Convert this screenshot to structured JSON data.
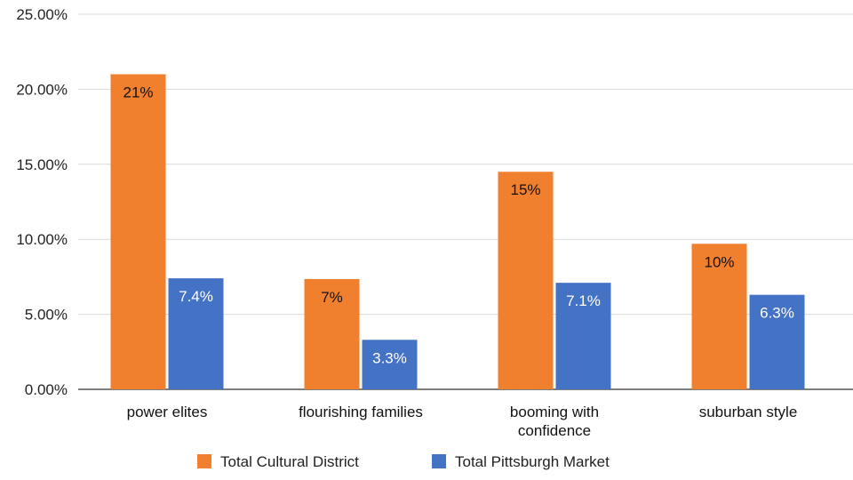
{
  "chart_data": {
    "type": "bar",
    "categories": [
      [
        "power elites"
      ],
      [
        "flourishing families"
      ],
      [
        "booming with",
        "confidence"
      ],
      [
        "suburban style"
      ]
    ],
    "series": [
      {
        "name": "Total Cultural District",
        "color": "#f07f2e",
        "values": [
          21,
          7.35,
          14.5,
          9.7
        ],
        "data_labels": [
          "21%",
          "7%",
          "15%",
          "10%"
        ],
        "label_color": "#111111"
      },
      {
        "name": "Total Pittsburgh Market",
        "color": "#4472c4",
        "values": [
          7.4,
          3.3,
          7.1,
          6.3
        ],
        "data_labels": [
          "7.4%",
          "3.3%",
          "7.1%",
          "6.3%"
        ],
        "label_color": "#ffffff"
      }
    ],
    "y_ticks": [
      "0.00%",
      "5.00%",
      "10.00%",
      "15.00%",
      "20.00%",
      "25.00%"
    ],
    "ylim": [
      0,
      25
    ],
    "grid": true,
    "gridline_color": "#d9d9d9",
    "legend_position": "bottom"
  }
}
